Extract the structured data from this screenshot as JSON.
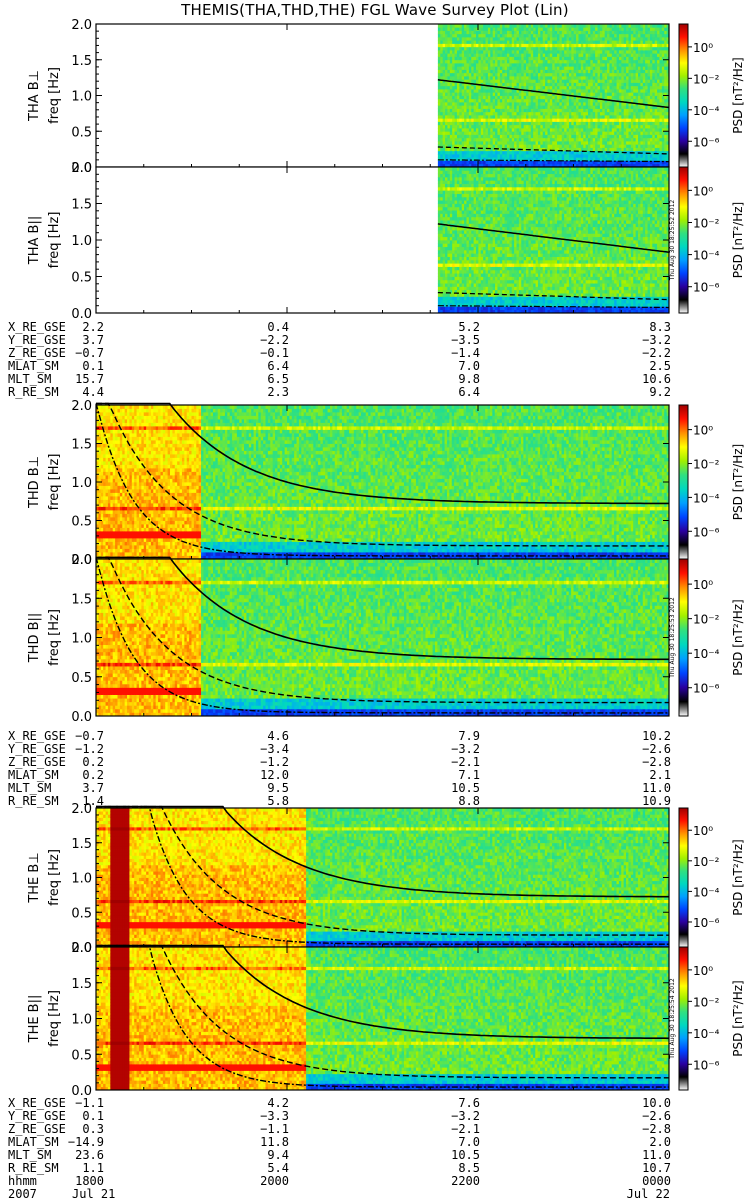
{
  "title": "THEMIS(THA,THD,THE) FGL Wave Survey Plot (Lin)",
  "colorbar": {
    "label": "PSD [nT²/Hz]",
    "ticks": [
      "10⁰",
      "10⁻²",
      "10⁻⁴",
      "10⁻⁶"
    ],
    "stops": [
      "#ffffff",
      "#000000",
      "#2a00a0",
      "#0044ff",
      "#00a0ff",
      "#00d8c0",
      "#30e080",
      "#a0f000",
      "#ffff00",
      "#ff9000",
      "#ff1000",
      "#a00000"
    ]
  },
  "chart_data": [
    {
      "type": "heatmap",
      "panel": "THA B⊥",
      "ylabel": "freq [Hz]",
      "probe": "THA",
      "component": "B⊥",
      "yticks": [
        "2.0",
        "1.5",
        "1.0",
        "0.5",
        "0.0"
      ],
      "ylim": [
        0,
        2.0
      ],
      "data_start_hour": 21.58,
      "dashed_only": true
    },
    {
      "type": "heatmap",
      "panel": "THA B||",
      "ylabel": "freq [Hz]",
      "probe": "THA",
      "component": "B||",
      "yticks": [
        "2.0",
        "1.5",
        "1.0",
        "0.5",
        "0.0"
      ],
      "ylim": [
        0,
        2.0
      ],
      "data_start_hour": 21.58,
      "dashed_only": true
    },
    {
      "type": "heatmap",
      "panel": "THD B⊥",
      "ylabel": "freq [Hz]",
      "probe": "THD",
      "component": "B⊥",
      "yticks": [
        "2.0",
        "1.5",
        "1.0",
        "0.5",
        "0.0"
      ],
      "ylim": [
        0,
        2.0
      ],
      "data_start_hour": 18.0,
      "dashed_only": false
    },
    {
      "type": "heatmap",
      "panel": "THD B||",
      "ylabel": "freq [Hz]",
      "probe": "THD",
      "component": "B||",
      "yticks": [
        "2.0",
        "1.5",
        "1.0",
        "0.5",
        "0.0"
      ],
      "ylim": [
        0,
        2.0
      ],
      "data_start_hour": 18.0,
      "dashed_only": false
    },
    {
      "type": "heatmap",
      "panel": "THE B⊥",
      "ylabel": "freq [Hz]",
      "probe": "THE",
      "component": "B⊥",
      "yticks": [
        "2.0",
        "1.5",
        "1.0",
        "0.5",
        "0.0"
      ],
      "ylim": [
        0,
        2.0
      ],
      "data_start_hour": 18.0,
      "dashed_only": false
    },
    {
      "type": "heatmap",
      "panel": "THE B||",
      "ylabel": "freq [Hz]",
      "probe": "THE",
      "component": "B||",
      "yticks": [
        "2.0",
        "1.5",
        "1.0",
        "0.5",
        "0.0"
      ],
      "ylim": [
        0,
        2.0
      ],
      "data_start_hour": 18.0,
      "dashed_only": false
    }
  ],
  "stamps": [
    "Thu Aug 30 18:25:52 2012",
    "Thu Aug 30 18:25:53 2012",
    "Thu Aug 30 18:25:54 2012"
  ],
  "orbit_tables": [
    {
      "rows": [
        {
          "label": "X_RE_GSE",
          "values": [
            "2.2",
            "0.4",
            "5.2",
            "8.3"
          ]
        },
        {
          "label": "Y_RE_GSE",
          "values": [
            "3.7",
            "−2.2",
            "−3.5",
            "−3.2"
          ]
        },
        {
          "label": "Z_RE_GSE",
          "values": [
            "−0.7",
            "−0.1",
            "−1.4",
            "−2.2"
          ]
        },
        {
          "label": "MLAT_SM",
          "values": [
            "0.1",
            "6.4",
            "7.0",
            "2.5"
          ]
        },
        {
          "label": "MLT_SM",
          "values": [
            "15.7",
            "6.5",
            "9.8",
            "10.6"
          ]
        },
        {
          "label": "R_RE_SM",
          "values": [
            "4.4",
            "2.3",
            "6.4",
            "9.2"
          ]
        }
      ]
    },
    {
      "rows": [
        {
          "label": "X_RE_GSE",
          "values": [
            "−0.7",
            "4.6",
            "7.9",
            "10.2"
          ]
        },
        {
          "label": "Y_RE_GSE",
          "values": [
            "−1.2",
            "−3.4",
            "−3.2",
            "−2.6"
          ]
        },
        {
          "label": "Z_RE_GSE",
          "values": [
            "0.2",
            "−1.2",
            "−2.1",
            "−2.8"
          ]
        },
        {
          "label": "MLAT_SM",
          "values": [
            "0.2",
            "12.0",
            "7.1",
            "2.1"
          ]
        },
        {
          "label": "MLT_SM",
          "values": [
            "3.7",
            "9.5",
            "10.5",
            "11.0"
          ]
        },
        {
          "label": "R_RE_SM",
          "values": [
            "1.4",
            "5.8",
            "8.8",
            "10.9"
          ]
        }
      ]
    },
    {
      "rows": [
        {
          "label": "X_RE_GSE",
          "values": [
            "−1.1",
            "4.2",
            "7.6",
            "10.0"
          ]
        },
        {
          "label": "Y_RE_GSE",
          "values": [
            "0.1",
            "−3.3",
            "−3.2",
            "−2.6"
          ]
        },
        {
          "label": "Z_RE_GSE",
          "values": [
            "0.3",
            "−1.1",
            "−2.1",
            "−2.8"
          ]
        },
        {
          "label": "MLAT_SM",
          "values": [
            "−14.9",
            "11.8",
            "7.0",
            "2.0"
          ]
        },
        {
          "label": "MLT_SM",
          "values": [
            "23.6",
            "9.4",
            "10.5",
            "11.0"
          ]
        },
        {
          "label": "R_RE_SM",
          "values": [
            "1.1",
            "5.4",
            "8.5",
            "10.7"
          ]
        },
        {
          "label": "hhmm",
          "values": [
            "1800",
            "2000",
            "2200",
            "0000"
          ]
        }
      ]
    }
  ],
  "date_row": {
    "label": "2007",
    "start": "Jul 21",
    "end": "Jul 22"
  }
}
